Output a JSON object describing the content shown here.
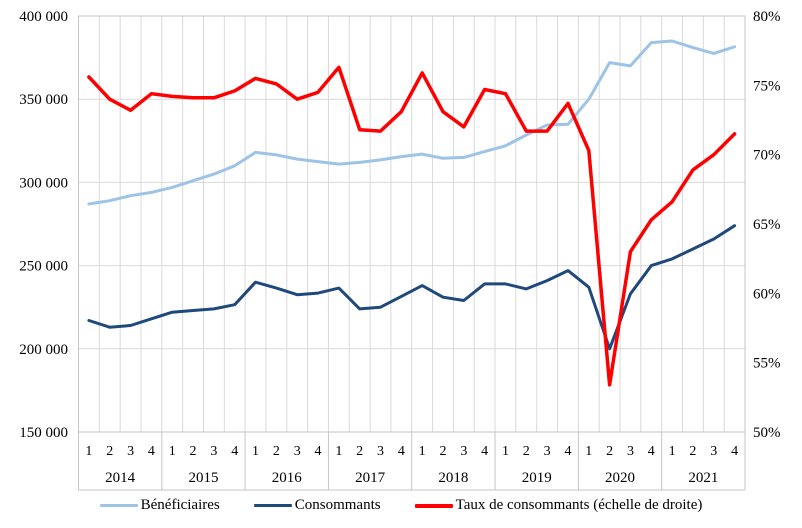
{
  "chart_data": {
    "type": "line",
    "x_years": [
      "2014",
      "2015",
      "2016",
      "2017",
      "2018",
      "2019",
      "2020",
      "2021"
    ],
    "x_quarter_labels": [
      "1",
      "2",
      "3",
      "4"
    ],
    "left_axis": {
      "min": 150000,
      "max": 400000,
      "tick_labels": [
        "400 000",
        "350 000",
        "300 000",
        "250 000",
        "200 000",
        "150 000"
      ]
    },
    "right_axis": {
      "min": 50,
      "max": 80,
      "tick_labels": [
        "80%",
        "75%",
        "70%",
        "65%",
        "60%",
        "55%",
        "50%"
      ]
    },
    "grid": true,
    "legend_position": "bottom",
    "series": [
      {
        "name": "Bénéficiaires",
        "axis": "left",
        "color": "#9DC3E6",
        "values": [
          287000,
          289000,
          292000,
          294000,
          297000,
          301000,
          305000,
          310000,
          318000,
          316500,
          314000,
          312500,
          311000,
          312000,
          313500,
          315500,
          317000,
          314500,
          315000,
          318500,
          322000,
          328500,
          334500,
          335000,
          350000,
          372000,
          370000,
          384000,
          385000,
          381000,
          377500,
          381500
        ]
      },
      {
        "name": "Consommants",
        "axis": "left",
        "color": "#1F497D",
        "values": [
          217000,
          213000,
          214000,
          218000,
          222000,
          223000,
          224000,
          226500,
          240000,
          236500,
          232500,
          233500,
          236500,
          224000,
          225000,
          231500,
          238000,
          231000,
          229000,
          239000,
          239000,
          236000,
          241000,
          247000,
          237000,
          200000,
          233000,
          250000,
          254000,
          260000,
          266000,
          274000
        ]
      },
      {
        "name": "Taux de consommants (échelle de droite)",
        "axis": "right",
        "color": "#FF0000",
        "values": [
          75.6,
          74.0,
          73.2,
          74.4,
          74.2,
          74.1,
          74.1,
          74.6,
          75.5,
          75.1,
          74.0,
          74.5,
          76.3,
          71.8,
          71.7,
          73.1,
          75.9,
          73.1,
          72.0,
          74.7,
          74.4,
          71.7,
          71.7,
          73.7,
          70.3,
          53.4,
          63.0,
          65.3,
          66.6,
          68.9,
          70.0,
          71.5
        ]
      }
    ],
    "style": {
      "grid_color": "#D9D9D9",
      "frame_color": "#C6C6C6",
      "text_color": "#000000"
    }
  }
}
